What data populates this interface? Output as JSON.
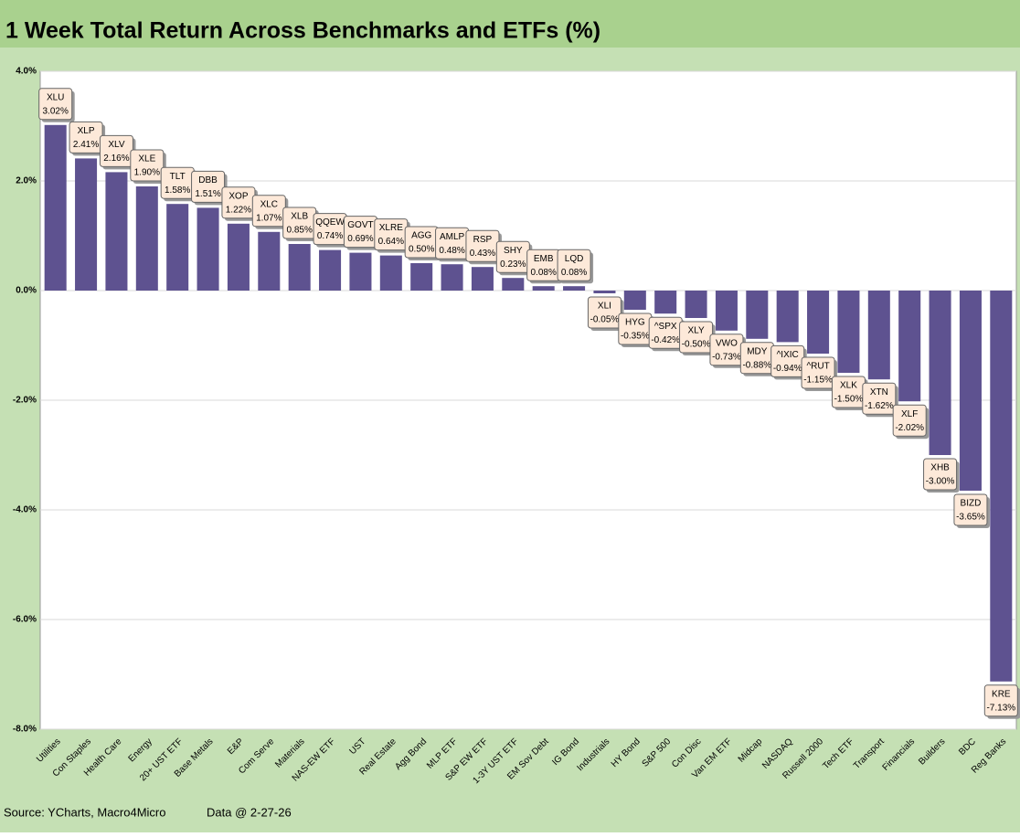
{
  "chart_data": {
    "type": "bar",
    "title": "1 Week Total Return Across Benchmarks and ETFs (%)",
    "categories": [
      "Utilities",
      "Con Staples",
      "Health Care",
      "Energy",
      "20+ UST ETF",
      "Base Metals",
      "E&P",
      "Com Serve",
      "Materials",
      "NAS-EW ETF",
      "UST",
      "Real Estate",
      "Agg Bond",
      "MLP ETF",
      "S&P EW ETF",
      "1-3Y UST ETF",
      "EM Sov Debt",
      "IG Bond",
      "Industrials",
      "HY Bond",
      "S&P 500",
      "Con Disc",
      "Van EM ETF",
      "Midcap",
      "NASDAQ",
      "Russell 2000",
      "Tech ETF",
      "Transport",
      "Financials",
      "Builders",
      "BDC",
      "Reg Banks"
    ],
    "tickers": [
      "XLU",
      "XLP",
      "XLV",
      "XLE",
      "TLT",
      "DBB",
      "XOP",
      "XLC",
      "XLB",
      "QQEW",
      "GOVT",
      "XLRE",
      "AGG",
      "AMLP",
      "RSP",
      "SHY",
      "EMB",
      "LQD",
      "XLI",
      "HYG",
      "^SPX",
      "XLY",
      "VWO",
      "MDY",
      "^IXIC",
      "^RUT",
      "XLK",
      "XTN",
      "XLF",
      "XHB",
      "BIZD",
      "KRE"
    ],
    "values": [
      3.02,
      2.41,
      2.16,
      1.9,
      1.58,
      1.51,
      1.22,
      1.07,
      0.85,
      0.74,
      0.69,
      0.64,
      0.5,
      0.48,
      0.43,
      0.23,
      0.08,
      0.08,
      -0.05,
      -0.35,
      -0.42,
      -0.5,
      -0.73,
      -0.88,
      -0.94,
      -1.15,
      -1.5,
      -1.62,
      -2.02,
      -3.0,
      -3.65,
      -7.13
    ],
    "value_labels": [
      "3.02%",
      "2.41%",
      "2.16%",
      "1.90%",
      "1.58%",
      "1.51%",
      "1.22%",
      "1.07%",
      "0.85%",
      "0.74%",
      "0.69%",
      "0.64%",
      "0.50%",
      "0.48%",
      "0.43%",
      "0.23%",
      "0.08%",
      "0.08%",
      "-0.05%",
      "-0.35%",
      "-0.42%",
      "-0.50%",
      "-0.73%",
      "-0.88%",
      "-0.94%",
      "-1.15%",
      "-1.50%",
      "-1.62%",
      "-2.02%",
      "-3.00%",
      "-3.65%",
      "-7.13%"
    ],
    "color": "#5e5290",
    "ylim": [
      -8,
      4
    ],
    "yticks": [
      {
        "value": -8,
        "label": "-8.0%"
      },
      {
        "value": -6,
        "label": "-6.0%"
      },
      {
        "value": -4,
        "label": "-4.0%"
      },
      {
        "value": -2,
        "label": "-2.0%"
      },
      {
        "value": 0,
        "label": "0.0%"
      },
      {
        "value": 2,
        "label": "2.0%"
      },
      {
        "value": 4,
        "label": "4.0%"
      }
    ],
    "grid": true,
    "source": "Source: YCharts, Macro4Micro",
    "note": "Data @ 2-27-26"
  }
}
